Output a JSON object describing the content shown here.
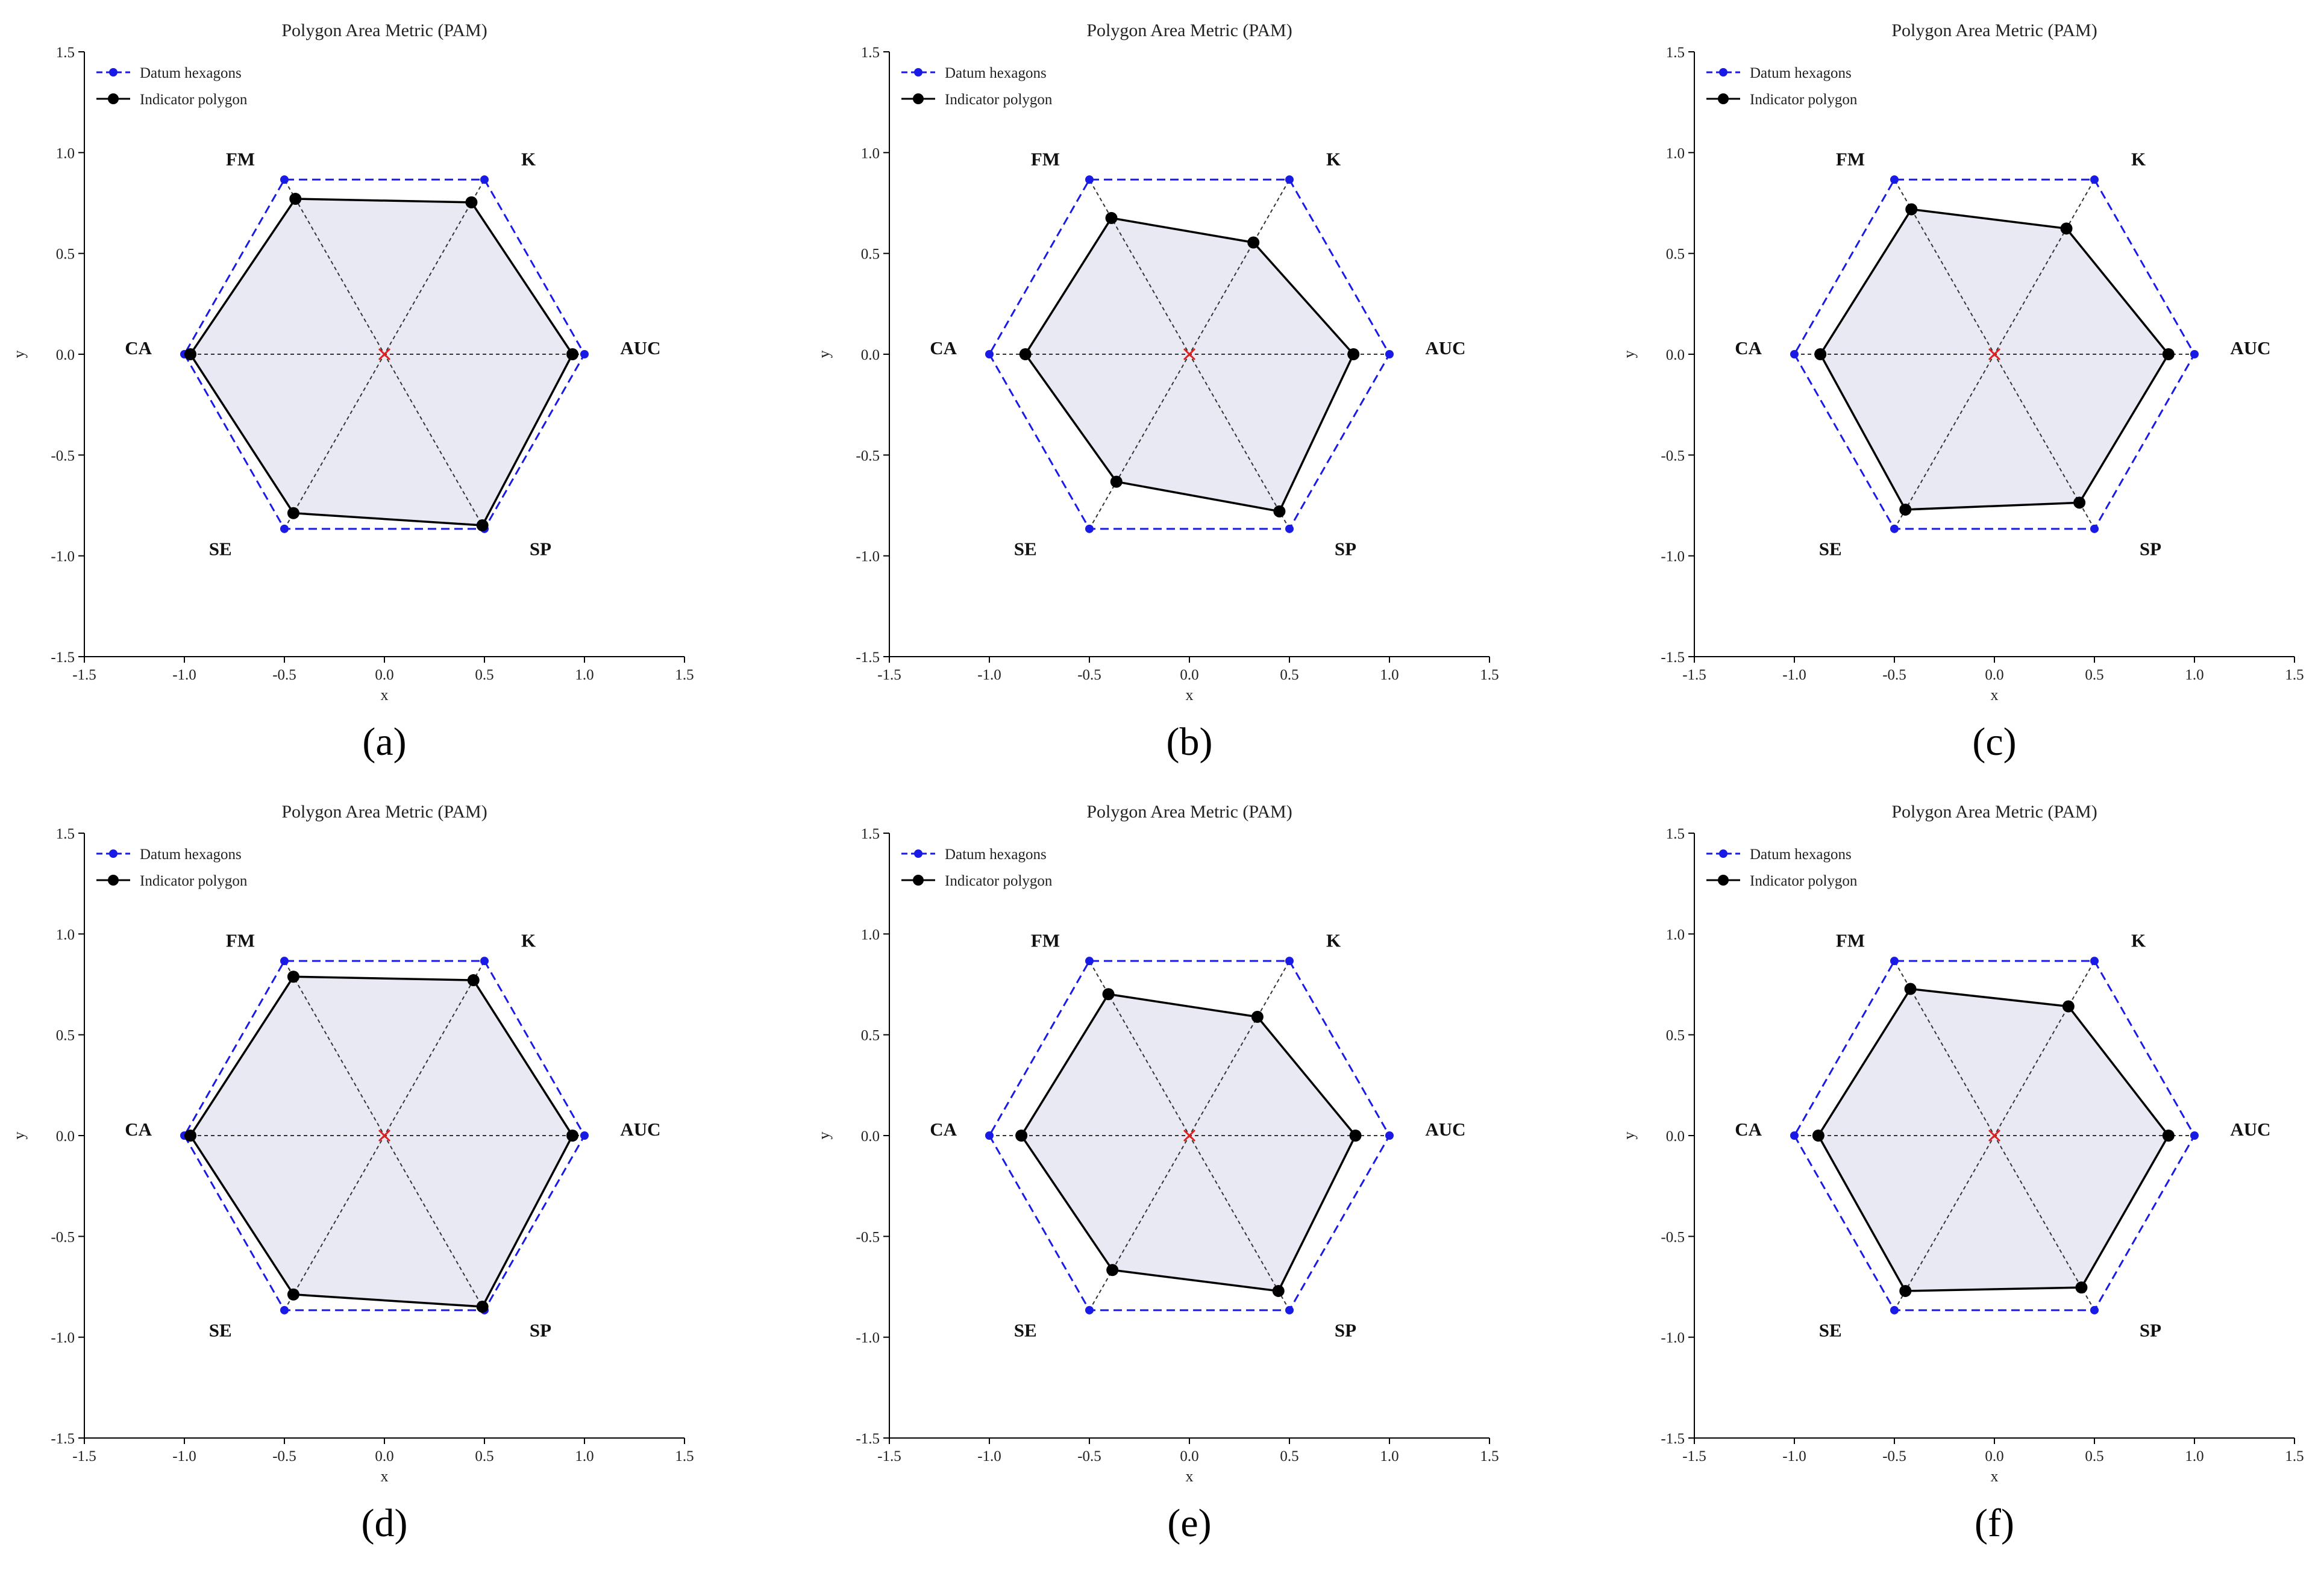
{
  "figure": {
    "panels": [
      "(a)",
      "(b)",
      "(c)",
      "(d)",
      "(e)",
      "(f)"
    ]
  },
  "colors": {
    "datum": "#1a1ae6",
    "indicator": "#000000",
    "fill": "#e8e9f3",
    "center": "#e02020",
    "spoke": "#333333"
  },
  "chart_data": [
    {
      "type": "scatter",
      "panel_label": "(a)",
      "title": "Polygon Area Metric (PAM)",
      "xlabel": "x",
      "ylabel": "y",
      "xlim": [
        -1.5,
        1.5
      ],
      "ylim": [
        -1.5,
        1.5
      ],
      "xticks": [
        "-1.5",
        "-1.0",
        "-0.5",
        "0.0",
        "0.5",
        "1.0",
        "1.5"
      ],
      "yticks": [
        "-1.5",
        "-1.0",
        "-0.5",
        "0.0",
        "0.5",
        "1.0",
        "1.5"
      ],
      "legend": [
        "Datum hexagons",
        "Indicator polygon"
      ],
      "legend_position": "top-left",
      "axes": [
        "CA",
        "SE",
        "SP",
        "AUC",
        "K",
        "FM"
      ],
      "series": [
        {
          "name": "Datum hexagons",
          "values": [
            1,
            1,
            1,
            1,
            1,
            1
          ]
        },
        {
          "name": "Indicator polygon",
          "values": [
            0.97,
            0.91,
            0.98,
            0.94,
            0.87,
            0.89
          ]
        }
      ]
    },
    {
      "type": "scatter",
      "panel_label": "(b)",
      "title": "Polygon Area Metric (PAM)",
      "xlabel": "x",
      "ylabel": "y",
      "xlim": [
        -1.5,
        1.5
      ],
      "ylim": [
        -1.5,
        1.5
      ],
      "xticks": [
        "-1.5",
        "-1.0",
        "-0.5",
        "0.0",
        "0.5",
        "1.0",
        "1.5"
      ],
      "yticks": [
        "-1.5",
        "-1.0",
        "-0.5",
        "0.0",
        "0.5",
        "1.0",
        "1.5"
      ],
      "legend": [
        "Datum hexagons",
        "Indicator polygon"
      ],
      "legend_position": "top-left",
      "axes": [
        "CA",
        "SE",
        "SP",
        "AUC",
        "K",
        "FM"
      ],
      "series": [
        {
          "name": "Datum hexagons",
          "values": [
            1,
            1,
            1,
            1,
            1,
            1
          ]
        },
        {
          "name": "Indicator polygon",
          "values": [
            0.82,
            0.73,
            0.9,
            0.82,
            0.64,
            0.78
          ]
        }
      ]
    },
    {
      "type": "scatter",
      "panel_label": "(c)",
      "title": "Polygon Area Metric (PAM)",
      "xlabel": "x",
      "ylabel": "y",
      "xlim": [
        -1.5,
        1.5
      ],
      "ylim": [
        -1.5,
        1.5
      ],
      "xticks": [
        "-1.5",
        "-1.0",
        "-0.5",
        "0.0",
        "0.5",
        "1.0",
        "1.5"
      ],
      "yticks": [
        "-1.5",
        "-1.0",
        "-0.5",
        "0.0",
        "0.5",
        "1.0",
        "1.5"
      ],
      "legend": [
        "Datum hexagons",
        "Indicator polygon"
      ],
      "legend_position": "top-left",
      "axes": [
        "CA",
        "SE",
        "SP",
        "AUC",
        "K",
        "FM"
      ],
      "series": [
        {
          "name": "Datum hexagons",
          "values": [
            1,
            1,
            1,
            1,
            1,
            1
          ]
        },
        {
          "name": "Indicator polygon",
          "values": [
            0.87,
            0.89,
            0.85,
            0.87,
            0.72,
            0.83
          ]
        }
      ]
    },
    {
      "type": "scatter",
      "panel_label": "(d)",
      "title": "Polygon Area Metric (PAM)",
      "xlabel": "x",
      "ylabel": "y",
      "xlim": [
        -1.5,
        1.5
      ],
      "ylim": [
        -1.5,
        1.5
      ],
      "xticks": [
        "-1.5",
        "-1.0",
        "-0.5",
        "0.0",
        "0.5",
        "1.0",
        "1.5"
      ],
      "yticks": [
        "-1.5",
        "-1.0",
        "-0.5",
        "0.0",
        "0.5",
        "1.0",
        "1.5"
      ],
      "legend": [
        "Datum hexagons",
        "Indicator polygon"
      ],
      "legend_position": "top-left",
      "axes": [
        "CA",
        "SE",
        "SP",
        "AUC",
        "K",
        "FM"
      ],
      "series": [
        {
          "name": "Datum hexagons",
          "values": [
            1,
            1,
            1,
            1,
            1,
            1
          ]
        },
        {
          "name": "Indicator polygon",
          "values": [
            0.97,
            0.91,
            0.98,
            0.94,
            0.89,
            0.91
          ]
        }
      ]
    },
    {
      "type": "scatter",
      "panel_label": "(e)",
      "title": "Polygon Area Metric (PAM)",
      "xlabel": "x",
      "ylabel": "y",
      "xlim": [
        -1.5,
        1.5
      ],
      "ylim": [
        -1.5,
        1.5
      ],
      "xticks": [
        "-1.5",
        "-1.0",
        "-0.5",
        "0.0",
        "0.5",
        "1.0",
        "1.5"
      ],
      "yticks": [
        "-1.5",
        "-1.0",
        "-0.5",
        "0.0",
        "0.5",
        "1.0",
        "1.5"
      ],
      "legend": [
        "Datum hexagons",
        "Indicator polygon"
      ],
      "legend_position": "top-left",
      "axes": [
        "CA",
        "SE",
        "SP",
        "AUC",
        "K",
        "FM"
      ],
      "series": [
        {
          "name": "Datum hexagons",
          "values": [
            1,
            1,
            1,
            1,
            1,
            1
          ]
        },
        {
          "name": "Indicator polygon",
          "values": [
            0.84,
            0.77,
            0.89,
            0.83,
            0.68,
            0.81
          ]
        }
      ]
    },
    {
      "type": "scatter",
      "panel_label": "(f)",
      "title": "Polygon Area Metric (PAM)",
      "xlabel": "x",
      "ylabel": "y",
      "xlim": [
        -1.5,
        1.5
      ],
      "ylim": [
        -1.5,
        1.5
      ],
      "xticks": [
        "-1.5",
        "-1.0",
        "-0.5",
        "0.0",
        "0.5",
        "1.0",
        "1.5"
      ],
      "yticks": [
        "-1.5",
        "-1.0",
        "-0.5",
        "0.0",
        "0.5",
        "1.0",
        "1.5"
      ],
      "legend": [
        "Datum hexagons",
        "Indicator polygon"
      ],
      "legend_position": "top-left",
      "axes": [
        "CA",
        "SE",
        "SP",
        "AUC",
        "K",
        "FM"
      ],
      "series": [
        {
          "name": "Datum hexagons",
          "values": [
            1,
            1,
            1,
            1,
            1,
            1
          ]
        },
        {
          "name": "Indicator polygon",
          "values": [
            0.88,
            0.89,
            0.87,
            0.87,
            0.74,
            0.84
          ]
        }
      ]
    }
  ]
}
